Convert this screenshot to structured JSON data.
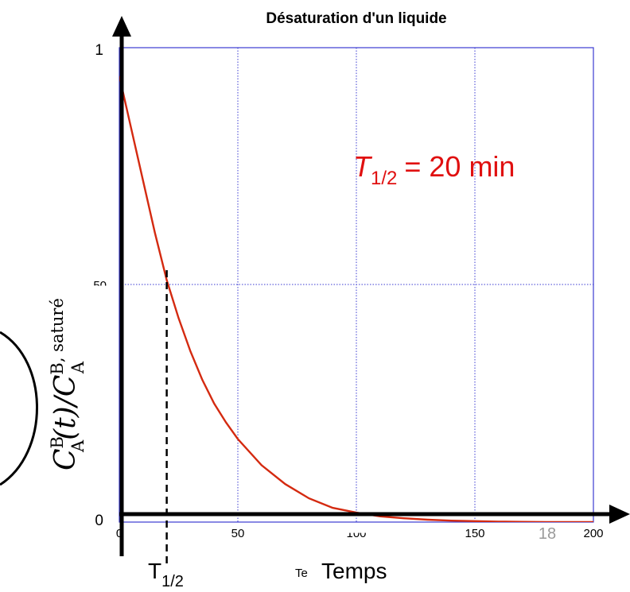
{
  "chart_data": {
    "type": "line",
    "title": "Désaturation d'un liquide",
    "ylabel": {
      "main": "C",
      "sup1": "B",
      "sub1": "A",
      "mid": "(t)/C",
      "sup2": "B, saturé",
      "sub2": "A"
    },
    "xlabel_prefix": "Te",
    "xlabel": "Temps",
    "xlim": [
      0,
      200
    ],
    "ylim": [
      0,
      1
    ],
    "x_ticks": [
      "0",
      "50",
      "100",
      "150",
      "200"
    ],
    "y_tick_top": "1",
    "y_tick_mid": "50",
    "y_tick_bottom": "0",
    "half_life_x": 20,
    "series": [
      {
        "color": "#d42a10",
        "x": [
          0,
          5,
          10,
          15,
          20,
          25,
          30,
          35,
          40,
          45,
          50,
          60,
          70,
          80,
          90,
          100,
          110,
          120,
          130,
          140,
          150,
          160,
          170,
          180,
          190,
          200
        ],
        "y": [
          0.94,
          0.83,
          0.72,
          0.61,
          0.51,
          0.43,
          0.36,
          0.3,
          0.25,
          0.21,
          0.175,
          0.12,
          0.08,
          0.05,
          0.03,
          0.02,
          0.012,
          0.008,
          0.005,
          0.003,
          0.002,
          0.001,
          0.0005,
          0.0,
          0.0,
          0.0
        ]
      }
    ],
    "annotation": {
      "symbol": "T",
      "sub": "1/2",
      "text": "= 20 min"
    },
    "marker_label": {
      "text": "T",
      "sub": "1/2"
    },
    "page_number": "18"
  }
}
